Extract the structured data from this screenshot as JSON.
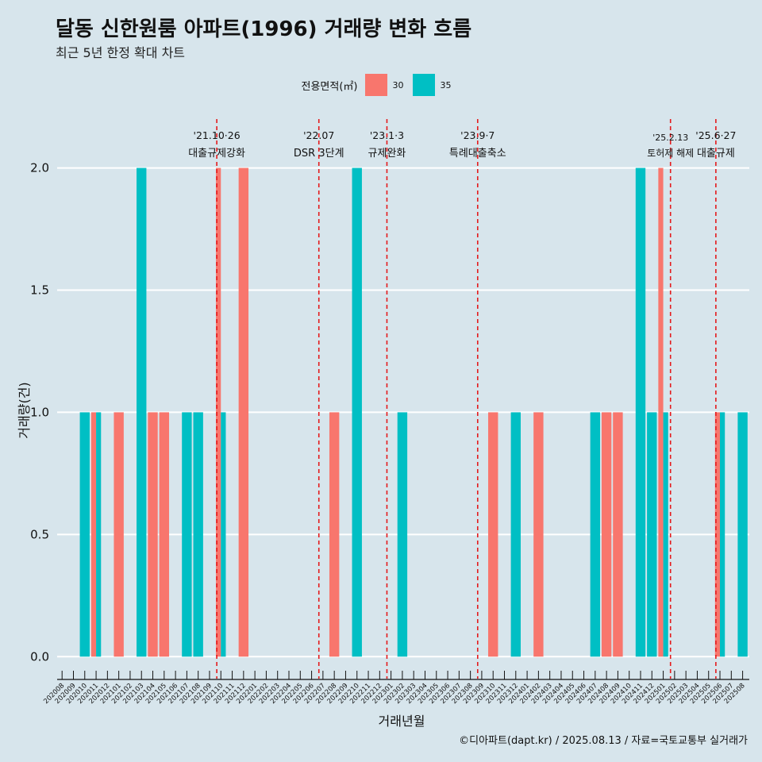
{
  "title": "달동 신한원룸 아파트(1996) 거래량 변화 흐름",
  "subtitle": "최근 5년 한정 확대 차트",
  "caption": "©디아파트(dapt.kr) / 2025.08.13 / 자료=국토교통부 실거래가",
  "legend": {
    "title": "전용면적(㎡)",
    "items": [
      {
        "label": "30",
        "color": "#f8766d"
      },
      {
        "label": "35",
        "color": "#00bfc4"
      }
    ]
  },
  "chart_data": {
    "type": "bar",
    "xlabel": "거래년월",
    "ylabel": "거래량(건)",
    "ylim": [
      -0.09,
      2.2
    ],
    "yticks": [
      "0.0",
      "0.5",
      "1.0",
      "1.5",
      "2.0"
    ],
    "categories": [
      "202008",
      "202009",
      "202010",
      "202011",
      "202012",
      "202101",
      "202102",
      "202103",
      "202104",
      "202105",
      "202106",
      "202107",
      "202108",
      "202109",
      "202110",
      "202111",
      "202112",
      "202201",
      "202202",
      "202203",
      "202204",
      "202205",
      "202206",
      "202207",
      "202208",
      "202209",
      "202210",
      "202211",
      "202212",
      "202301",
      "202302",
      "202303",
      "202304",
      "202305",
      "202306",
      "202307",
      "202308",
      "202309",
      "202310",
      "202311",
      "202312",
      "202401",
      "202402",
      "202403",
      "202404",
      "202405",
      "202406",
      "202407",
      "202408",
      "202409",
      "202410",
      "202411",
      "202412",
      "202501",
      "202502",
      "202503",
      "202504",
      "202505",
      "202506",
      "202507",
      "202508"
    ],
    "series": [
      {
        "name": "30",
        "color": "#f8766d",
        "values": [
          0,
          0,
          0,
          1,
          0,
          1,
          0,
          0,
          1,
          1,
          0,
          0,
          0,
          0,
          2,
          0,
          2,
          0,
          0,
          0,
          0,
          0,
          0,
          0,
          1,
          0,
          0,
          0,
          0,
          0,
          0,
          0,
          0,
          0,
          0,
          0,
          0,
          0,
          1,
          0,
          0,
          0,
          1,
          0,
          0,
          0,
          0,
          0,
          1,
          1,
          0,
          0,
          0,
          2,
          0,
          0,
          0,
          0,
          1,
          0,
          0
        ]
      },
      {
        "name": "35",
        "color": "#00bfc4",
        "values": [
          0,
          0,
          1,
          1,
          0,
          0,
          0,
          2,
          0,
          0,
          0,
          1,
          1,
          0,
          1,
          0,
          0,
          0,
          0,
          0,
          0,
          0,
          0,
          0,
          0,
          0,
          2,
          0,
          0,
          0,
          1,
          0,
          0,
          0,
          0,
          0,
          0,
          0,
          0,
          0,
          1,
          0,
          0,
          0,
          0,
          0,
          0,
          1,
          0,
          0,
          0,
          2,
          1,
          1,
          0,
          0,
          0,
          0,
          1,
          0,
          1
        ]
      }
    ],
    "annotations": [
      {
        "date": "202110",
        "line1": "'21.10·26",
        "line2": "대출규제강화"
      },
      {
        "date": "202207",
        "line1": "'22.07",
        "line2": "DSR 3단계"
      },
      {
        "date": "202301",
        "line1": "'23.1·3",
        "line2": "규제완화"
      },
      {
        "date": "202309",
        "line1": "'23.9·7",
        "line2": "특례대출축소"
      },
      {
        "date": "202502",
        "line1": "'25.2.13",
        "line2": "토허제 해제"
      },
      {
        "date": "202506",
        "line1": "'25.6·27",
        "line2": "대출규제"
      }
    ]
  }
}
